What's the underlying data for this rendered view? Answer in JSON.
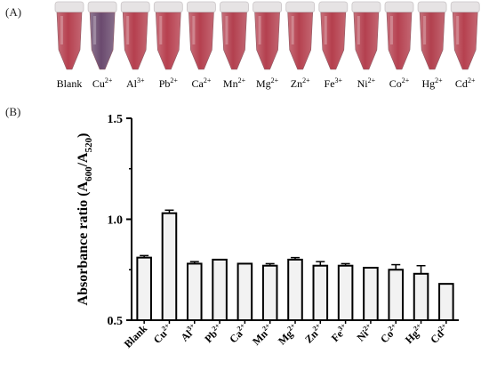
{
  "panels": {
    "a_label": "(A)",
    "b_label": "(B)"
  },
  "tubes": [
    {
      "label": "Blank",
      "ion": "",
      "charge": "",
      "color": "#b5404f"
    },
    {
      "label": "Cu",
      "ion": "Cu",
      "charge": "2+",
      "color": "#6a4a6e"
    },
    {
      "label": "Al",
      "ion": "Al",
      "charge": "3+",
      "color": "#b53f4e"
    },
    {
      "label": "Pb",
      "ion": "Pb",
      "charge": "2+",
      "color": "#b7404f"
    },
    {
      "label": "Ca",
      "ion": "Ca",
      "charge": "2+",
      "color": "#b5404f"
    },
    {
      "label": "Mn",
      "ion": "Mn",
      "charge": "2+",
      "color": "#b3404f"
    },
    {
      "label": "Mg",
      "ion": "Mg",
      "charge": "2+",
      "color": "#b4404f"
    },
    {
      "label": "Zn",
      "ion": "Zn",
      "charge": "2+",
      "color": "#b5414f"
    },
    {
      "label": "Fe",
      "ion": "Fe",
      "charge": "3+",
      "color": "#b53f4d"
    },
    {
      "label": "Ni",
      "ion": "Ni",
      "charge": "2+",
      "color": "#b4404f"
    },
    {
      "label": "Co",
      "ion": "Co",
      "charge": "2+",
      "color": "#b54150"
    },
    {
      "label": "Hg",
      "ion": "Hg",
      "charge": "2+",
      "color": "#b2404e"
    },
    {
      "label": "Cd",
      "ion": "Cd",
      "charge": "2+",
      "color": "#b6414f"
    }
  ],
  "chart_data": {
    "type": "bar",
    "ylabel": {
      "main": "Absorbance ratio (A",
      "sub1": "600",
      "mid": "/A",
      "sub2": "520",
      "end": ")"
    },
    "ylim": [
      0.5,
      1.5
    ],
    "yticks": [
      {
        "value": 0.5,
        "label": "0.5"
      },
      {
        "value": 1.0,
        "label": "1.0"
      },
      {
        "value": 1.5,
        "label": "1.5"
      }
    ],
    "categories": [
      {
        "base": "Blank",
        "sup": ""
      },
      {
        "base": "Cu",
        "sup": "2+"
      },
      {
        "base": "Al",
        "sup": "3+"
      },
      {
        "base": "Pb",
        "sup": "2+"
      },
      {
        "base": "Ca",
        "sup": "2+"
      },
      {
        "base": "Mn",
        "sup": "2+"
      },
      {
        "base": "Mg",
        "sup": "2+"
      },
      {
        "base": "Zn",
        "sup": "2+"
      },
      {
        "base": "Fe",
        "sup": "3+"
      },
      {
        "base": "Ni",
        "sup": "2+"
      },
      {
        "base": "Co",
        "sup": "2+"
      },
      {
        "base": "Hg",
        "sup": "2+"
      },
      {
        "base": "Cd",
        "sup": "2+"
      }
    ],
    "values": [
      0.81,
      1.03,
      0.78,
      0.8,
      0.78,
      0.77,
      0.8,
      0.77,
      0.77,
      0.76,
      0.75,
      0.73,
      0.68
    ],
    "errors": [
      0.01,
      0.015,
      0.01,
      0.0,
      0.0,
      0.01,
      0.01,
      0.02,
      0.01,
      0.0,
      0.025,
      0.04,
      0.0
    ],
    "bar_fill": "#f2f2f2",
    "bar_stroke": "#000000"
  }
}
